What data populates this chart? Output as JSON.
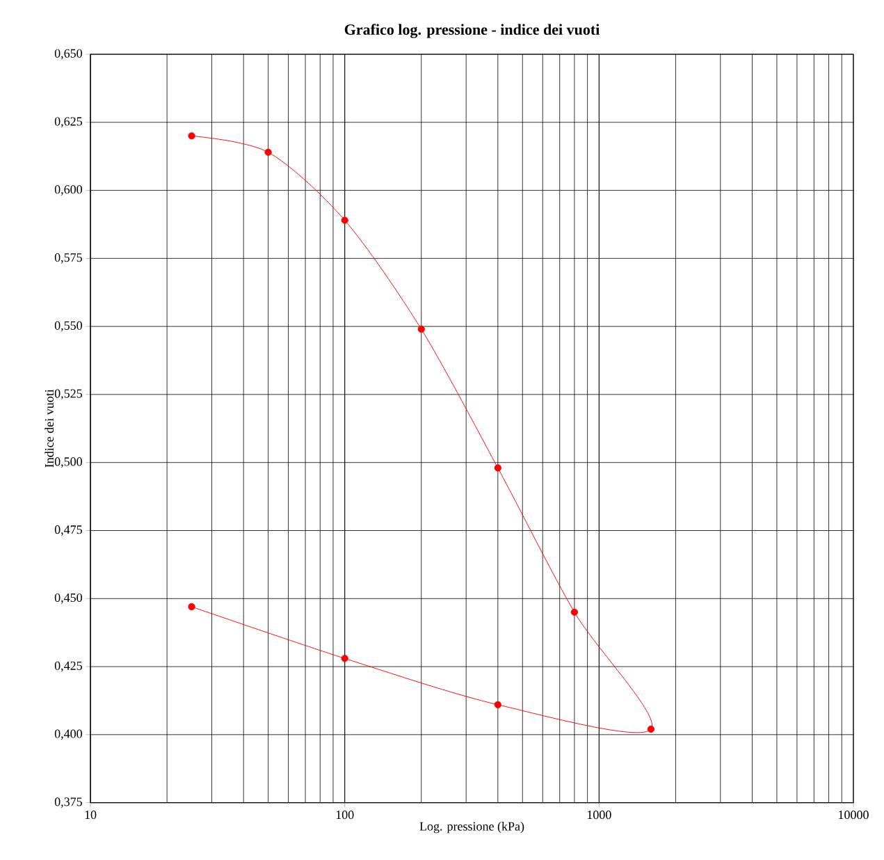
{
  "chart_data": {
    "type": "line",
    "title": "Grafico log. pressione - indice dei vuoti",
    "xlabel": "Log. pressione (kPa)",
    "ylabel": "Indice dei vuoti",
    "x": [
      25,
      50,
      100,
      200,
      400,
      800,
      1600,
      400,
      100,
      25
    ],
    "values": [
      0.62,
      0.614,
      0.589,
      0.549,
      0.498,
      0.445,
      0.402,
      0.411,
      0.428,
      0.447
    ],
    "color": "#ff0000",
    "marker": "circle",
    "log": "x",
    "grid": true,
    "xlim": [
      10,
      10000
    ],
    "xticks": [
      10,
      100,
      1000,
      10000
    ],
    "ylim": [
      0.375,
      0.65
    ],
    "yticks": [
      {
        "value": 0.375,
        "label": "0,375"
      },
      {
        "value": 0.4,
        "label": "0,400"
      },
      {
        "value": 0.425,
        "label": "0,425"
      },
      {
        "value": 0.45,
        "label": "0,450"
      },
      {
        "value": 0.475,
        "label": "0,475"
      },
      {
        "value": 0.5,
        "label": "0,500"
      },
      {
        "value": 0.525,
        "label": "0,525"
      },
      {
        "value": 0.55,
        "label": "0,550"
      },
      {
        "value": 0.575,
        "label": "0,575"
      },
      {
        "value": 0.6,
        "label": "0,600"
      },
      {
        "value": 0.625,
        "label": "0,625"
      },
      {
        "value": 0.65,
        "label": "0,650"
      }
    ]
  }
}
